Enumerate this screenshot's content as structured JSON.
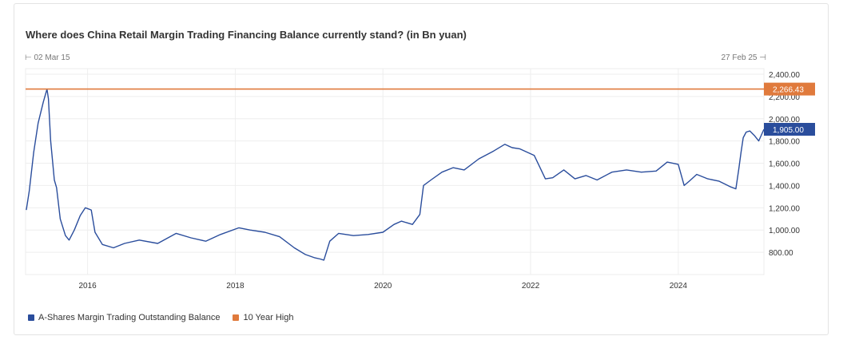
{
  "chart_data": {
    "type": "line",
    "title": "Where does China Retail Margin Trading Financing Balance currently stand? (in Bn yuan)",
    "range_start": "02 Mar 15",
    "range_end": "27 Feb 25",
    "xlabel": "",
    "ylabel": "",
    "x_ticks": [
      "2016",
      "2018",
      "2020",
      "2022",
      "2024"
    ],
    "y_ticks": [
      "2,400.00",
      "2,200.00",
      "2,000.00",
      "1,800.00",
      "1,600.00",
      "1,400.00",
      "1,200.00",
      "1,000.00",
      "800.00"
    ],
    "xlim": [
      2015.16,
      2025.16
    ],
    "ylim": [
      600,
      2450
    ],
    "grid": true,
    "legend_position": "bottom-left",
    "series": [
      {
        "name": "A-Shares Margin Trading Outstanding Balance",
        "color": "#2a4d9c",
        "last_value_label": "1,905.00",
        "x": [
          2015.17,
          2015.21,
          2015.27,
          2015.33,
          2015.4,
          2015.45,
          2015.47,
          2015.5,
          2015.55,
          2015.58,
          2015.63,
          2015.7,
          2015.75,
          2015.82,
          2015.9,
          2015.97,
          2016.05,
          2016.1,
          2016.2,
          2016.35,
          2016.5,
          2016.7,
          2016.95,
          2017.2,
          2017.4,
          2017.6,
          2017.8,
          2018.05,
          2018.2,
          2018.4,
          2018.6,
          2018.8,
          2018.95,
          2019.08,
          2019.15,
          2019.2,
          2019.28,
          2019.4,
          2019.6,
          2019.8,
          2020.0,
          2020.15,
          2020.25,
          2020.4,
          2020.5,
          2020.55,
          2020.65,
          2020.8,
          2020.95,
          2021.1,
          2021.3,
          2021.5,
          2021.65,
          2021.75,
          2021.85,
          2022.05,
          2022.2,
          2022.3,
          2022.45,
          2022.6,
          2022.75,
          2022.9,
          2023.1,
          2023.3,
          2023.5,
          2023.7,
          2023.85,
          2024.0,
          2024.08,
          2024.15,
          2024.25,
          2024.4,
          2024.55,
          2024.7,
          2024.78,
          2024.82,
          2024.85,
          2024.88,
          2024.92,
          2024.97,
          2025.03,
          2025.09,
          2025.16
        ],
        "y": [
          1180,
          1350,
          1700,
          1960,
          2150,
          2266,
          2180,
          1800,
          1450,
          1380,
          1100,
          950,
          910,
          1000,
          1130,
          1200,
          1180,
          980,
          870,
          840,
          880,
          910,
          880,
          970,
          930,
          900,
          960,
          1020,
          1000,
          980,
          940,
          840,
          780,
          750,
          740,
          730,
          900,
          970,
          950,
          960,
          980,
          1050,
          1080,
          1050,
          1140,
          1400,
          1450,
          1520,
          1560,
          1540,
          1640,
          1710,
          1770,
          1740,
          1730,
          1670,
          1460,
          1470,
          1540,
          1460,
          1490,
          1450,
          1520,
          1540,
          1520,
          1530,
          1610,
          1590,
          1400,
          1440,
          1500,
          1460,
          1440,
          1390,
          1370,
          1550,
          1700,
          1830,
          1880,
          1890,
          1850,
          1800,
          1905
        ]
      },
      {
        "name": "10 Year High",
        "color": "#e07a3c",
        "last_value_label": "2,266.43",
        "x": [
          2015.16,
          2025.16
        ],
        "y": [
          2266.43,
          2266.43
        ]
      }
    ]
  }
}
